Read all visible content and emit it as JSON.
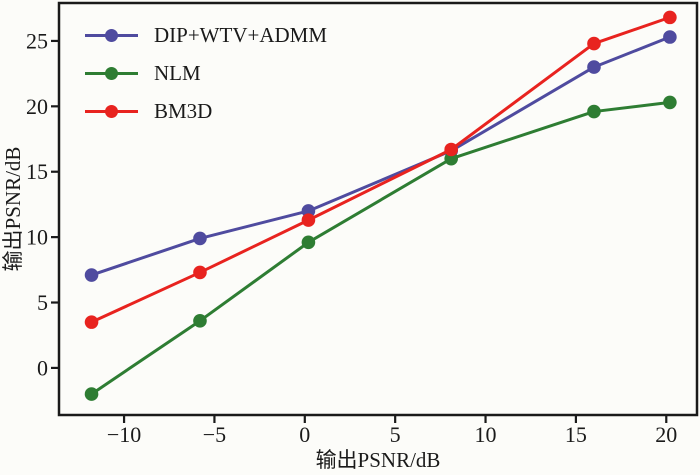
{
  "figure": {
    "background": "#fcfcf9",
    "axis_color": "#1a1a1a"
  },
  "chart_data": {
    "type": "line",
    "title": "",
    "xlabel": "输出PSNR/dB",
    "ylabel": "输出PSNR/dB",
    "x": [
      -11.8,
      -5.8,
      0.2,
      8.1,
      16.0,
      20.2
    ],
    "x_ticks": [
      -10,
      -5,
      0,
      5,
      10,
      15,
      20
    ],
    "y_ticks": [
      0,
      5,
      10,
      15,
      20,
      25
    ],
    "xlim": [
      -13.6,
      21.7
    ],
    "ylim": [
      -3.6,
      27.9
    ],
    "grid": false,
    "legend_position": "top-left-inside",
    "marker": "circle",
    "series": [
      {
        "name": "DIP+WTV+ADMM",
        "color": "#4f4b9f",
        "values": [
          7.1,
          9.9,
          12.0,
          16.6,
          23.0,
          25.3
        ]
      },
      {
        "name": "NLM",
        "color": "#2e7d33",
        "values": [
          -2.0,
          3.6,
          9.6,
          16.0,
          19.6,
          20.3
        ]
      },
      {
        "name": "BM3D",
        "color": "#e8231f",
        "values": [
          3.5,
          7.3,
          11.3,
          16.7,
          24.8,
          26.8
        ]
      }
    ]
  }
}
